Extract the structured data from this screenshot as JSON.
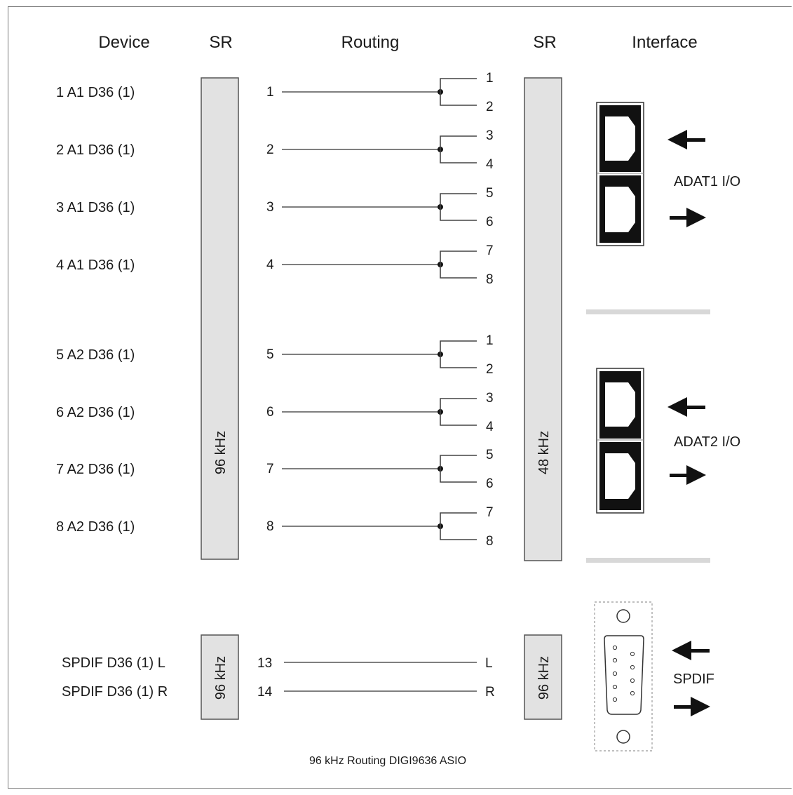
{
  "headers": {
    "device": "Device",
    "sr_left": "SR",
    "routing": "Routing",
    "sr_right": "SR",
    "interface": "Interface"
  },
  "devices": [
    {
      "label": "1 A1 D36 (1)",
      "route": "1",
      "outs": [
        "1",
        "2"
      ]
    },
    {
      "label": "2 A1 D36 (1)",
      "route": "2",
      "outs": [
        "3",
        "4"
      ]
    },
    {
      "label": "3 A1 D36 (1)",
      "route": "3",
      "outs": [
        "5",
        "6"
      ]
    },
    {
      "label": "4 A1 D36 (1)",
      "route": "4",
      "outs": [
        "7",
        "8"
      ]
    },
    {
      "label": "5 A2 D36 (1)",
      "route": "5",
      "outs": [
        "1",
        "2"
      ]
    },
    {
      "label": "6 A2 D36 (1)",
      "route": "6",
      "outs": [
        "3",
        "4"
      ]
    },
    {
      "label": "7 A2 D36 (1)",
      "route": "7",
      "outs": [
        "5",
        "6"
      ]
    },
    {
      "label": "8 A2 D36 (1)",
      "route": "8",
      "outs": [
        "7",
        "8"
      ]
    }
  ],
  "spdif_devices": [
    {
      "label": "SPDIF D36 (1) L",
      "route": "13",
      "out": "L"
    },
    {
      "label": "SPDIF D36 (1) R",
      "route": "14",
      "out": "R"
    }
  ],
  "sample_rates": {
    "left_main": "96 kHz",
    "right_main": "48 kHz",
    "left_spdif": "96 kHz",
    "right_spdif": "96 kHz"
  },
  "interfaces": {
    "adat1": "ADAT1 I/O",
    "adat2": "ADAT2 I/O",
    "spdif": "SPDIF"
  },
  "icons": [
    "optical-port-icon",
    "arrow-left-icon",
    "arrow-right-icon",
    "dsub-connector-icon"
  ],
  "colors": {
    "bar_fill": "#e2e2e2",
    "line": "#555555",
    "separator": "#d8d8d8"
  },
  "caption": "96 kHz Routing DIGI9636 ASIO"
}
